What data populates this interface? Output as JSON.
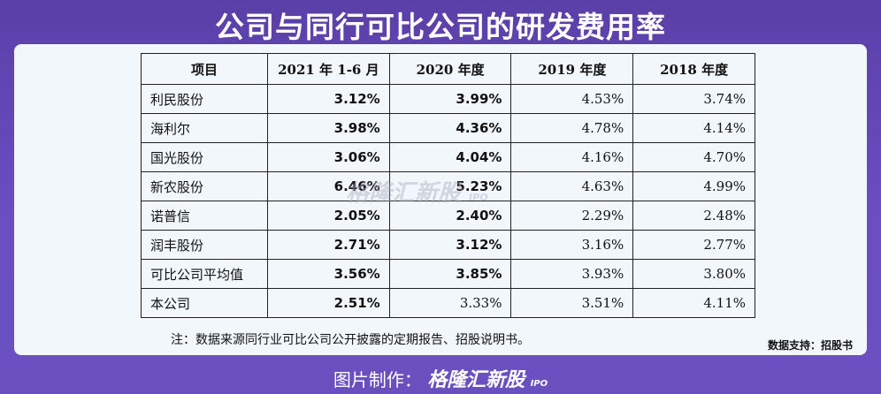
{
  "title": "公司与同行可比公司的研发费用率",
  "table": {
    "headers": [
      "项目",
      "2021 年 1-6 月",
      "2020 年度",
      "2019 年度",
      "2018 年度"
    ],
    "rows": [
      {
        "name": "利民股份",
        "v2021h1": "3.12%",
        "v2020": "3.99%",
        "v2019": "4.53%",
        "v2018": "3.74%"
      },
      {
        "name": "海利尔",
        "v2021h1": "3.98%",
        "v2020": "4.36%",
        "v2019": "4.78%",
        "v2018": "4.14%"
      },
      {
        "name": "国光股份",
        "v2021h1": "3.06%",
        "v2020": "4.04%",
        "v2019": "4.16%",
        "v2018": "4.70%"
      },
      {
        "name": "新农股份",
        "v2021h1": "6.46%",
        "v2020": "5.23%",
        "v2019": "4.63%",
        "v2018": "4.99%"
      },
      {
        "name": "诺普信",
        "v2021h1": "2.05%",
        "v2020": "2.40%",
        "v2019": "2.29%",
        "v2018": "2.48%"
      },
      {
        "name": "润丰股份",
        "v2021h1": "2.71%",
        "v2020": "3.12%",
        "v2019": "3.16%",
        "v2018": "2.77%"
      },
      {
        "name": "可比公司平均值",
        "v2021h1": "3.56%",
        "v2020": "3.85%",
        "v2019": "3.93%",
        "v2018": "3.80%"
      },
      {
        "name": "本公司",
        "v2021h1": "2.51%",
        "v2020": "3.33%",
        "v2019": "3.51%",
        "v2018": "4.11%"
      }
    ]
  },
  "note": "注：数据来源同行业可比公司公开披露的定期报告、招股说明书。",
  "support": "数据支持：招股书",
  "watermark": {
    "brand": "格隆汇新股",
    "tag": "IPO"
  },
  "footer": {
    "label": "图片制作：",
    "brand": "格隆汇新股",
    "tag": "IPO"
  }
}
